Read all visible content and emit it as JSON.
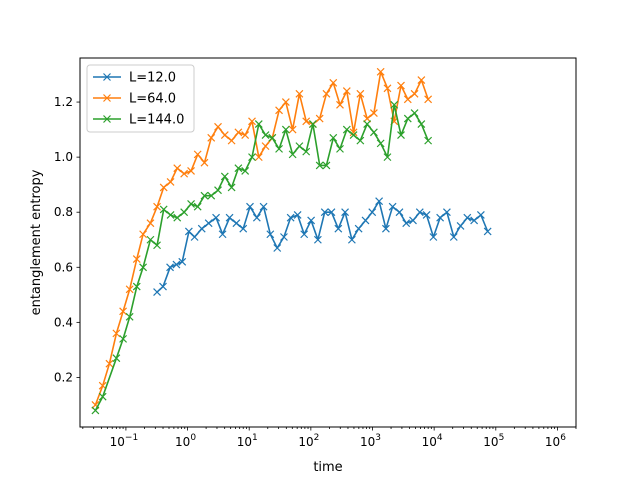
{
  "chart_data": {
    "type": "line",
    "title": "",
    "xlabel": "time",
    "ylabel": "entanglement entropy",
    "xscale": "log",
    "xlim": [
      0.018,
      2000000
    ],
    "ylim": [
      0.02,
      1.36
    ],
    "x_ticks": [
      {
        "value": 0.1,
        "base": "10",
        "exp": "−1"
      },
      {
        "value": 1,
        "base": "10",
        "exp": "0"
      },
      {
        "value": 10,
        "base": "10",
        "exp": "1"
      },
      {
        "value": 100,
        "base": "10",
        "exp": "2"
      },
      {
        "value": 1000,
        "base": "10",
        "exp": "3"
      },
      {
        "value": 10000,
        "base": "10",
        "exp": "4"
      },
      {
        "value": 100000,
        "base": "10",
        "exp": "5"
      },
      {
        "value": 1000000,
        "base": "10",
        "exp": "6"
      }
    ],
    "y_ticks": [
      {
        "value": 0.2,
        "label": "0.2"
      },
      {
        "value": 0.4,
        "label": "0.4"
      },
      {
        "value": 0.6,
        "label": "0.6"
      },
      {
        "value": 0.8,
        "label": "0.8"
      },
      {
        "value": 1.0,
        "label": "1.0"
      },
      {
        "value": 1.2,
        "label": "1.2"
      }
    ],
    "grid": false,
    "legend_position": "top-left",
    "marker": "x",
    "series": [
      {
        "name": "L=12.0",
        "color": "#1f77b4",
        "points": [
          [
            0.32,
            0.51
          ],
          [
            0.4,
            0.53
          ],
          [
            0.52,
            0.6
          ],
          [
            0.66,
            0.61
          ],
          [
            0.82,
            0.62
          ],
          [
            1.05,
            0.73
          ],
          [
            1.3,
            0.71
          ],
          [
            1.7,
            0.74
          ],
          [
            2.2,
            0.76
          ],
          [
            2.9,
            0.78
          ],
          [
            3.7,
            0.72
          ],
          [
            4.8,
            0.78
          ],
          [
            6.2,
            0.76
          ],
          [
            8,
            0.74
          ],
          [
            10.3,
            0.82
          ],
          [
            13.3,
            0.78
          ],
          [
            17.1,
            0.82
          ],
          [
            22,
            0.72
          ],
          [
            28.5,
            0.67
          ],
          [
            36.6,
            0.71
          ],
          [
            47,
            0.78
          ],
          [
            61,
            0.79
          ],
          [
            78,
            0.72
          ],
          [
            101,
            0.77
          ],
          [
            130,
            0.7
          ],
          [
            168,
            0.8
          ],
          [
            216,
            0.8
          ],
          [
            279,
            0.74
          ],
          [
            359,
            0.8
          ],
          [
            463,
            0.7
          ],
          [
            596,
            0.74
          ],
          [
            770,
            0.77
          ],
          [
            990,
            0.8
          ],
          [
            1280,
            0.84
          ],
          [
            1650,
            0.74
          ],
          [
            2120,
            0.82
          ],
          [
            2740,
            0.8
          ],
          [
            3520,
            0.76
          ],
          [
            4540,
            0.77
          ],
          [
            5850,
            0.8
          ],
          [
            7540,
            0.79
          ],
          [
            9720,
            0.71
          ],
          [
            12500,
            0.78
          ],
          [
            16100,
            0.8
          ],
          [
            20800,
            0.71
          ],
          [
            26800,
            0.75
          ],
          [
            34500,
            0.78
          ],
          [
            44500,
            0.77
          ],
          [
            57300,
            0.79
          ],
          [
            73800,
            0.73
          ]
        ]
      },
      {
        "name": "L=64.0",
        "color": "#ff7f0e",
        "points": [
          [
            0.032,
            0.1
          ],
          [
            0.042,
            0.17
          ],
          [
            0.054,
            0.25
          ],
          [
            0.07,
            0.36
          ],
          [
            0.09,
            0.44
          ],
          [
            0.115,
            0.52
          ],
          [
            0.15,
            0.63
          ],
          [
            0.19,
            0.72
          ],
          [
            0.25,
            0.76
          ],
          [
            0.32,
            0.82
          ],
          [
            0.41,
            0.89
          ],
          [
            0.53,
            0.91
          ],
          [
            0.68,
            0.96
          ],
          [
            0.88,
            0.94
          ],
          [
            1.14,
            0.95
          ],
          [
            1.46,
            1.01
          ],
          [
            1.88,
            0.98
          ],
          [
            2.42,
            1.07
          ],
          [
            3.12,
            1.11
          ],
          [
            4.02,
            1.08
          ],
          [
            5.18,
            1.06
          ],
          [
            6.67,
            1.09
          ],
          [
            8.6,
            1.08
          ],
          [
            11.1,
            1.13
          ],
          [
            14.3,
            1.0
          ],
          [
            18.4,
            1.04
          ],
          [
            23.7,
            1.07
          ],
          [
            30.5,
            1.17
          ],
          [
            39.3,
            1.2
          ],
          [
            50.6,
            1.1
          ],
          [
            65.2,
            1.23
          ],
          [
            84,
            1.13
          ],
          [
            108,
            1.12
          ],
          [
            139,
            1.14
          ],
          [
            179,
            1.23
          ],
          [
            231,
            1.27
          ],
          [
            297,
            1.19
          ],
          [
            383,
            1.24
          ],
          [
            493,
            1.09
          ],
          [
            635,
            1.23
          ],
          [
            818,
            1.14
          ],
          [
            1054,
            1.16
          ],
          [
            1357,
            1.31
          ],
          [
            1748,
            1.25
          ],
          [
            2252,
            1.13
          ],
          [
            2900,
            1.26
          ],
          [
            3737,
            1.21
          ],
          [
            4814,
            1.23
          ],
          [
            6201,
            1.28
          ],
          [
            7988,
            1.21
          ]
        ]
      },
      {
        "name": "L=144.0",
        "color": "#2ca02c",
        "points": [
          [
            0.032,
            0.08
          ],
          [
            0.042,
            0.13
          ],
          [
            0.07,
            0.27
          ],
          [
            0.09,
            0.34
          ],
          [
            0.115,
            0.42
          ],
          [
            0.15,
            0.53
          ],
          [
            0.19,
            0.6
          ],
          [
            0.25,
            0.7
          ],
          [
            0.32,
            0.68
          ],
          [
            0.41,
            0.81
          ],
          [
            0.53,
            0.79
          ],
          [
            0.68,
            0.78
          ],
          [
            0.88,
            0.8
          ],
          [
            1.14,
            0.83
          ],
          [
            1.46,
            0.82
          ],
          [
            1.88,
            0.86
          ],
          [
            2.42,
            0.86
          ],
          [
            3.12,
            0.88
          ],
          [
            4.02,
            0.93
          ],
          [
            5.18,
            0.89
          ],
          [
            6.67,
            0.96
          ],
          [
            8.6,
            0.95
          ],
          [
            11.1,
            1.0
          ],
          [
            14.3,
            1.12
          ],
          [
            18.4,
            1.08
          ],
          [
            23.7,
            1.07
          ],
          [
            30.5,
            1.03
          ],
          [
            39.3,
            1.1
          ],
          [
            50.6,
            1.01
          ],
          [
            65.2,
            1.04
          ],
          [
            84,
            1.02
          ],
          [
            108,
            1.12
          ],
          [
            139,
            0.97
          ],
          [
            179,
            0.97
          ],
          [
            231,
            1.07
          ],
          [
            297,
            1.03
          ],
          [
            383,
            1.1
          ],
          [
            493,
            1.08
          ],
          [
            635,
            1.06
          ],
          [
            818,
            1.12
          ],
          [
            1054,
            1.09
          ],
          [
            1357,
            1.05
          ],
          [
            1748,
            1.0
          ],
          [
            2252,
            1.19
          ],
          [
            2900,
            1.08
          ],
          [
            3737,
            1.14
          ],
          [
            4814,
            1.16
          ],
          [
            6201,
            1.12
          ],
          [
            7988,
            1.06
          ]
        ]
      }
    ]
  }
}
